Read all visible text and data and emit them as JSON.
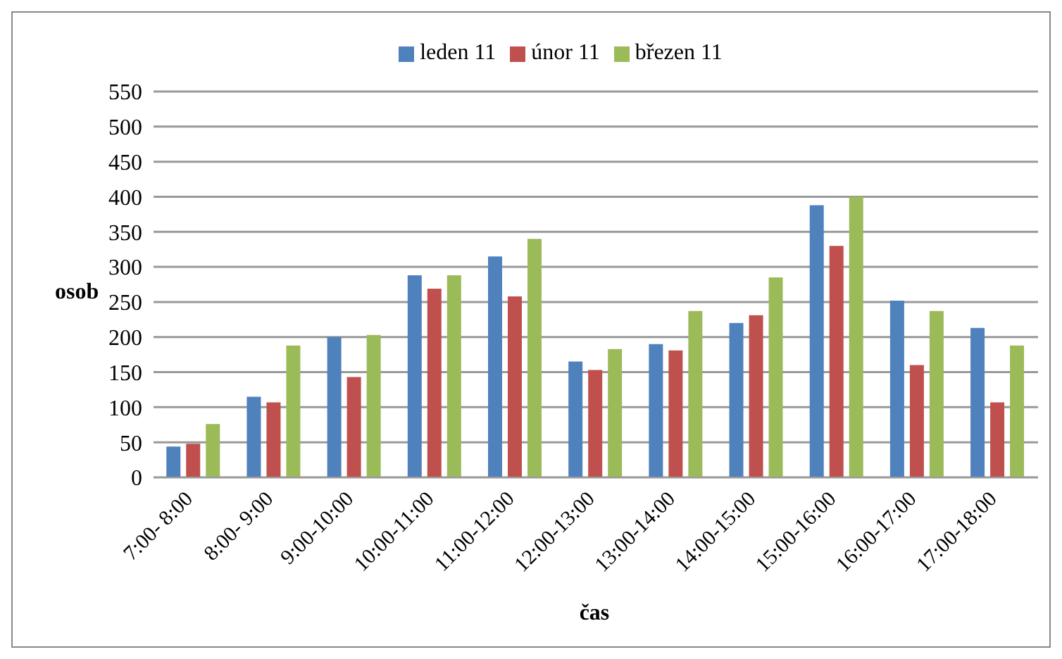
{
  "chart_data": {
    "type": "bar",
    "xlabel": "čas",
    "ylabel": "osob",
    "categories": [
      "7:00- 8:00",
      "8:00- 9:00",
      "9:00-10:00",
      "10:00-11:00",
      "11:00-12:00",
      "12:00-13:00",
      "13:00-14:00",
      "14:00-15:00",
      "15:00-16:00",
      "16:00-17:00",
      "17:00-18:00"
    ],
    "series": [
      {
        "name": "leden 11",
        "color": "#4f81bd",
        "values": [
          44,
          115,
          200,
          288,
          315,
          165,
          190,
          220,
          388,
          252,
          213
        ]
      },
      {
        "name": "únor 11",
        "color": "#c0504d",
        "values": [
          48,
          107,
          143,
          269,
          258,
          153,
          181,
          231,
          330,
          160,
          107
        ]
      },
      {
        "name": "březen 11",
        "color": "#9bbb59",
        "values": [
          76,
          188,
          203,
          288,
          340,
          183,
          237,
          285,
          400,
          237,
          188
        ]
      }
    ],
    "ylim": [
      0,
      550
    ],
    "yticks": [
      0,
      50,
      100,
      150,
      200,
      250,
      300,
      350,
      400,
      450,
      500,
      550
    ],
    "grid": "y",
    "legend": "top"
  }
}
